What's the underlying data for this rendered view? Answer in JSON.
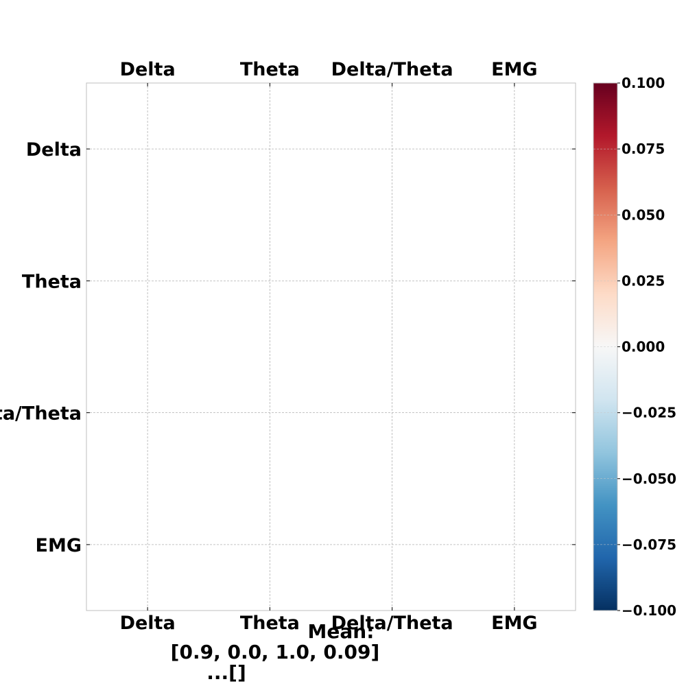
{
  "chart_data": {
    "type": "heatmap",
    "x_categories_top": [
      "Delta",
      "Theta",
      "Delta/Theta",
      "EMG"
    ],
    "x_categories_bottom": [
      "Delta",
      "Theta",
      "Delta/Theta",
      "EMG"
    ],
    "y_categories": [
      "Delta",
      "Theta",
      "Delta/Theta",
      "EMG"
    ],
    "values": [],
    "colorbar": {
      "colormap": "RdBu_r",
      "range": [
        -0.1,
        0.1
      ],
      "ticks": [
        0.1,
        0.075,
        0.05,
        0.025,
        0.0,
        -0.025,
        -0.05,
        -0.075,
        -0.1
      ],
      "tick_labels": [
        "0.100",
        "0.075",
        "0.050",
        "0.025",
        "0.000",
        "−0.025",
        "−0.050",
        "−0.075",
        "−0.100"
      ],
      "colors": [
        "#67001f",
        "#b2182b",
        "#d6604d",
        "#f4a582",
        "#fddbc7",
        "#f7f7f7",
        "#d1e5f0",
        "#92c5de",
        "#4393c3",
        "#2166ac",
        "#053061"
      ]
    },
    "grid": true,
    "annotation_lines": [
      "Mean:",
      "[0.9, 0.0, 1.0, 0.09]",
      "...[]"
    ]
  }
}
